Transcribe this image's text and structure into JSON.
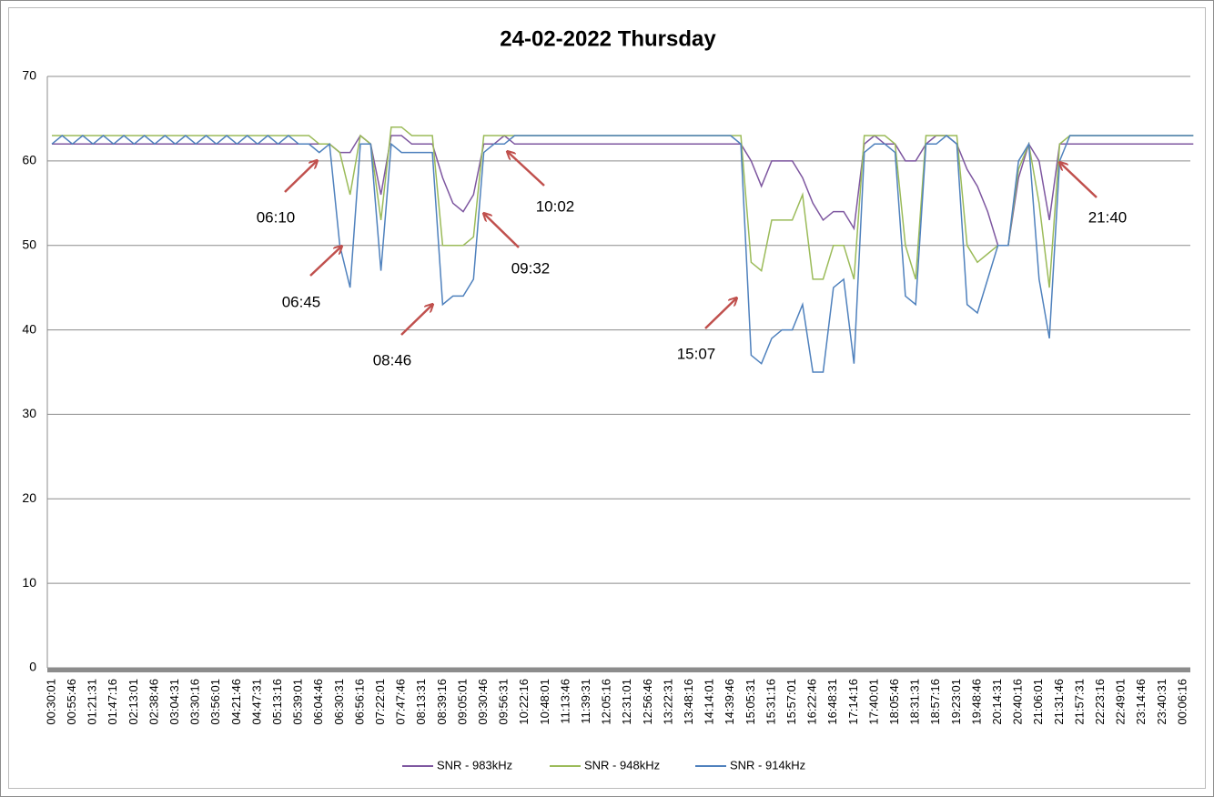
{
  "chart_data": {
    "type": "line",
    "title": "24-02-2022  Thursday",
    "categories": [
      "00:30:01",
      null,
      "00:55:46",
      null,
      "01:21:31",
      null,
      "01:47:16",
      null,
      "02:13:01",
      null,
      "02:38:46",
      null,
      "03:04:31",
      null,
      "03:30:16",
      null,
      "03:56:01",
      null,
      "04:21:46",
      null,
      "04:47:31",
      null,
      "05:13:16",
      null,
      "05:39:01",
      null,
      "06:04:46",
      null,
      "06:30:31",
      null,
      "06:56:16",
      null,
      "07:22:01",
      null,
      "07:47:46",
      null,
      "08:13:31",
      null,
      "08:39:16",
      null,
      "09:05:01",
      null,
      "09:30:46",
      null,
      "09:56:31",
      null,
      "10:22:16",
      null,
      "10:48:01",
      null,
      "11:13:46",
      null,
      "11:39:31",
      null,
      "12:05:16",
      null,
      "12:31:01",
      null,
      "12:56:46",
      null,
      "13:22:31",
      null,
      "13:48:16",
      null,
      "14:14:01",
      null,
      "14:39:46",
      null,
      "15:05:31",
      null,
      "15:31:16",
      null,
      "15:57:01",
      null,
      "16:22:46",
      null,
      "16:48:31",
      null,
      "17:14:16",
      null,
      "17:40:01",
      null,
      "18:05:46",
      null,
      "18:31:31",
      null,
      "18:57:16",
      null,
      "19:23:01",
      null,
      "19:48:46",
      null,
      "20:14:31",
      null,
      "20:40:16",
      null,
      "21:06:01",
      null,
      "21:31:46",
      null,
      "21:57:31",
      null,
      "22:23:16",
      null,
      "22:49:01",
      null,
      "23:14:46",
      null,
      "23:40:31",
      null,
      "00:06:16",
      null
    ],
    "series": [
      {
        "name": "SNR - 983kHz",
        "color": "#7e57a0",
        "values": [
          62,
          62,
          62,
          62,
          62,
          62,
          62,
          62,
          62,
          62,
          62,
          62,
          62,
          62,
          62,
          62,
          62,
          62,
          62,
          62,
          62,
          62,
          62,
          62,
          62,
          62,
          62,
          62,
          61,
          61,
          63,
          62,
          56,
          63,
          63,
          62,
          62,
          62,
          58,
          55,
          54,
          56,
          62,
          62,
          63,
          62,
          62,
          62,
          62,
          62,
          62,
          62,
          62,
          62,
          62,
          62,
          62,
          62,
          62,
          62,
          62,
          62,
          62,
          62,
          62,
          62,
          62,
          62,
          60,
          57,
          60,
          60,
          60,
          58,
          55,
          53,
          54,
          54,
          52,
          62,
          63,
          62,
          62,
          60,
          60,
          62,
          63,
          63,
          62,
          59,
          57,
          54,
          50,
          50,
          58,
          62,
          60,
          53,
          62,
          62,
          62,
          62,
          62,
          62,
          62,
          62,
          62,
          62,
          62,
          62,
          62,
          62
        ]
      },
      {
        "name": "SNR - 948kHz",
        "color": "#9bbb59",
        "values": [
          63,
          63,
          63,
          63,
          63,
          63,
          63,
          63,
          63,
          63,
          63,
          63,
          63,
          63,
          63,
          63,
          63,
          63,
          63,
          63,
          63,
          63,
          63,
          63,
          63,
          63,
          62,
          62,
          61,
          56,
          63,
          62,
          53,
          64,
          64,
          63,
          63,
          63,
          50,
          50,
          50,
          51,
          63,
          63,
          63,
          63,
          63,
          63,
          63,
          63,
          63,
          63,
          63,
          63,
          63,
          63,
          63,
          63,
          63,
          63,
          63,
          63,
          63,
          63,
          63,
          63,
          63,
          63,
          48,
          47,
          53,
          53,
          53,
          56,
          46,
          46,
          50,
          50,
          46,
          63,
          63,
          63,
          62,
          50,
          46,
          63,
          63,
          63,
          63,
          50,
          48,
          49,
          50,
          50,
          59,
          62,
          55,
          45,
          62,
          63,
          63,
          63,
          63,
          63,
          63,
          63,
          63,
          63,
          63,
          63,
          63,
          63
        ]
      },
      {
        "name": "SNR - 914kHz",
        "color": "#4f81bd",
        "values": [
          62,
          63,
          62,
          63,
          62,
          63,
          62,
          63,
          62,
          63,
          62,
          63,
          62,
          63,
          62,
          63,
          62,
          63,
          62,
          63,
          62,
          63,
          62,
          63,
          62,
          62,
          61,
          62,
          50,
          45,
          62,
          62,
          47,
          62,
          61,
          61,
          61,
          61,
          43,
          44,
          44,
          46,
          61,
          62,
          62,
          63,
          63,
          63,
          63,
          63,
          63,
          63,
          63,
          63,
          63,
          63,
          63,
          63,
          63,
          63,
          63,
          63,
          63,
          63,
          63,
          63,
          63,
          62,
          37,
          36,
          39,
          40,
          40,
          43,
          35,
          35,
          45,
          46,
          36,
          61,
          62,
          62,
          61,
          44,
          43,
          62,
          62,
          63,
          62,
          43,
          42,
          46,
          50,
          50,
          60,
          62,
          46,
          39,
          60,
          63,
          63,
          63,
          63,
          63,
          63,
          63,
          63,
          63,
          63,
          63,
          63,
          63
        ]
      }
    ],
    "ylim": [
      0,
      70
    ],
    "yticks": [
      0,
      10,
      20,
      30,
      40,
      50,
      60,
      70
    ],
    "grid": true,
    "legend": "bottom",
    "annotations": [
      "06:10",
      "06:45",
      "08:46",
      "09:32",
      "10:02",
      "15:07",
      "21:40"
    ]
  }
}
